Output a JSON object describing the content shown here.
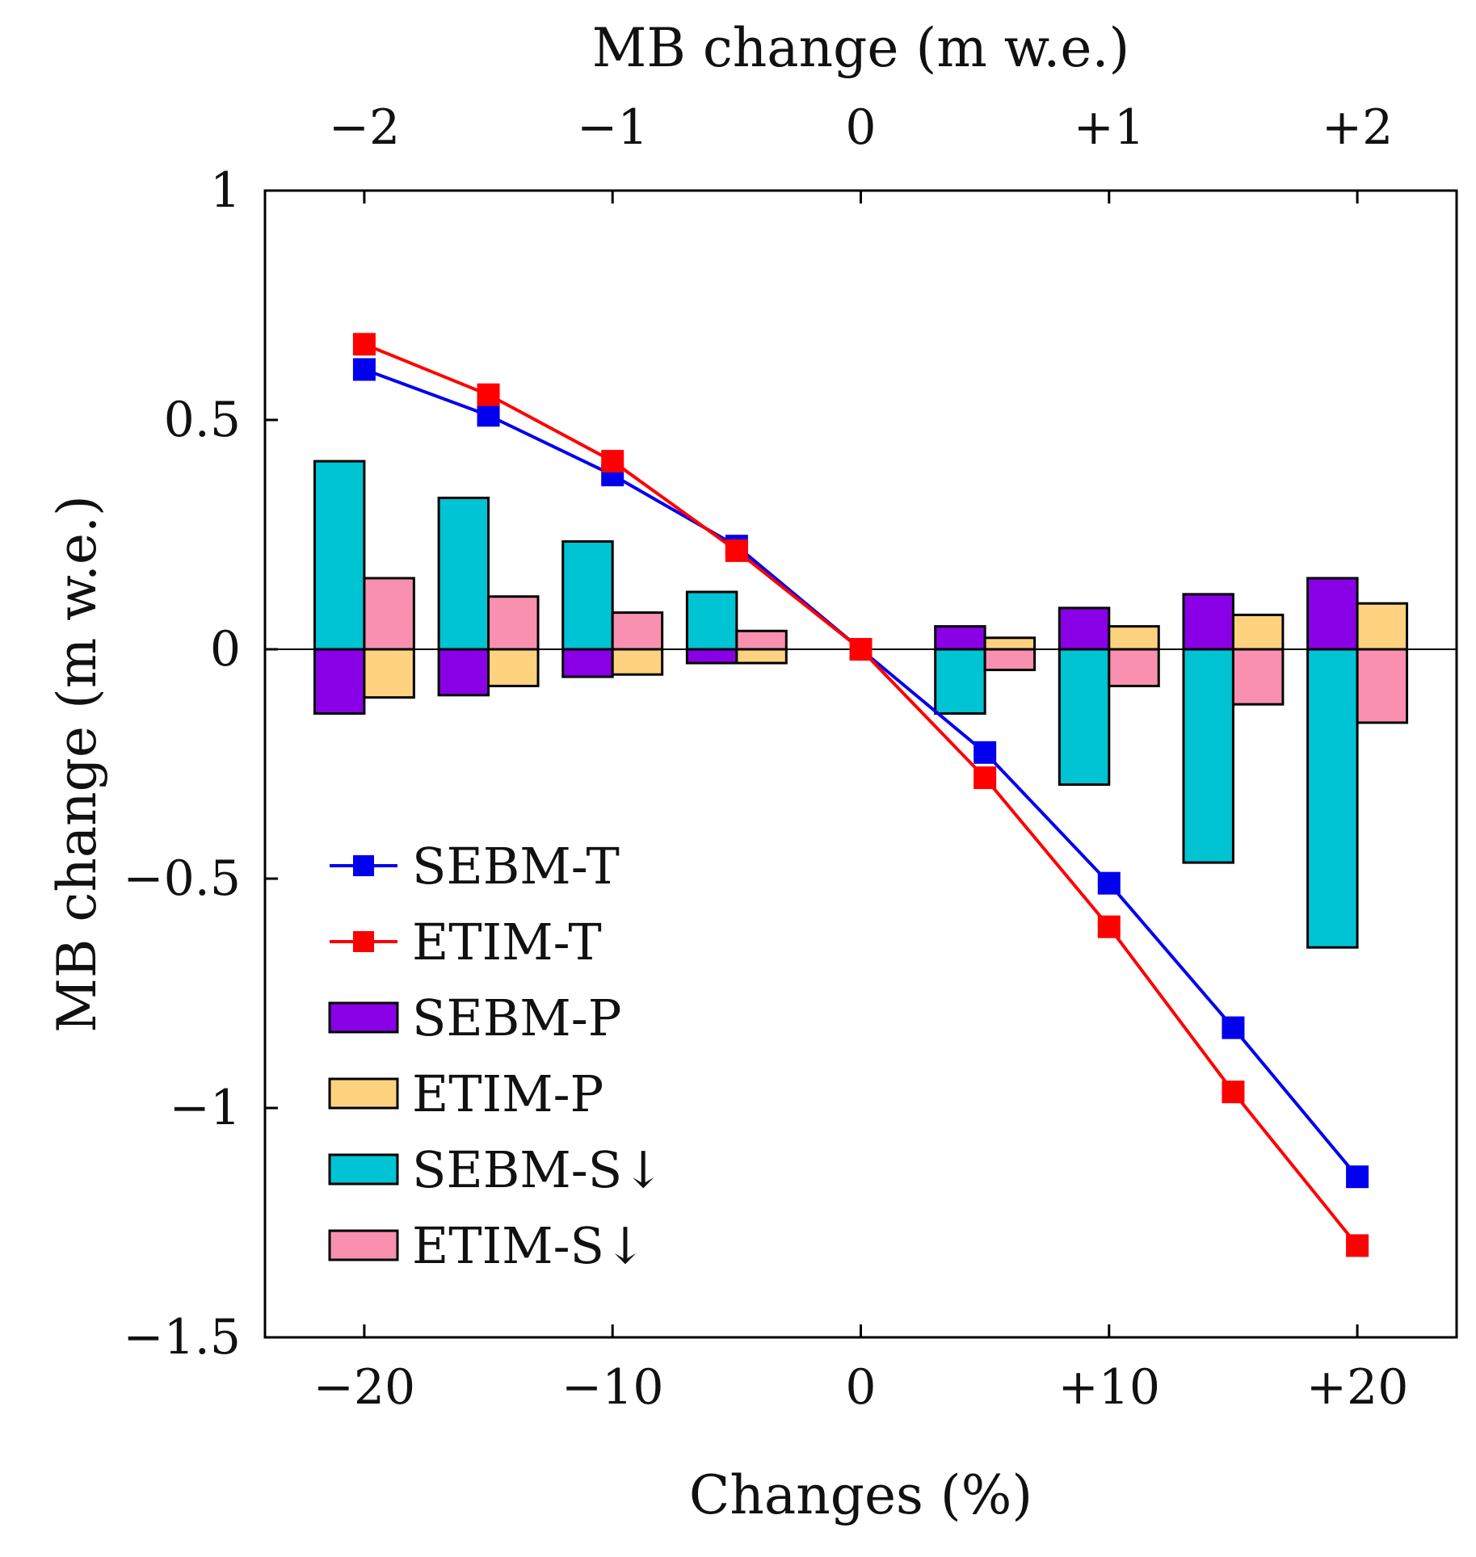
{
  "chart_data": {
    "type": "bar",
    "title": "",
    "xlabel": "Changes (%)",
    "ylabel": "MB change (m w.e.)",
    "x2label": "MB change (m w.e.)",
    "x_ticks": [
      "−20",
      "−10",
      "0",
      "+10",
      "+20"
    ],
    "x_tick_values": [
      -20,
      -10,
      0,
      10,
      20
    ],
    "x2_ticks": [
      "−2",
      "−1",
      "0",
      "+1",
      "+2"
    ],
    "x2_tick_values": [
      -20,
      -10,
      0,
      10,
      20
    ],
    "y_ticks": [
      "1",
      "0.5",
      "0",
      "−0.5",
      "−1",
      "−1.5"
    ],
    "y_tick_values": [
      1,
      0.5,
      0,
      -0.5,
      -1,
      -1.5
    ],
    "xlim": [
      -24,
      24
    ],
    "ylim": [
      -1.5,
      1
    ],
    "categories": [
      -20,
      -15,
      -10,
      -5,
      5,
      10,
      15,
      20
    ],
    "bar_series": [
      {
        "name": "SEBM-P",
        "color": "#8a00e6",
        "group": "left",
        "values": [
          -0.14,
          -0.1,
          -0.06,
          -0.03,
          0.05,
          0.09,
          0.12,
          0.155
        ]
      },
      {
        "name": "ETIM-P",
        "color": "#ffd27f",
        "group": "right",
        "values": [
          -0.105,
          -0.08,
          -0.055,
          -0.03,
          0.025,
          0.05,
          0.075,
          0.1
        ]
      },
      {
        "name": "SEBM-S↓",
        "color": "#00c3d3",
        "group": "left",
        "values": [
          0.41,
          0.33,
          0.235,
          0.125,
          -0.14,
          -0.295,
          -0.465,
          -0.65
        ]
      },
      {
        "name": "ETIM-S↓",
        "color": "#f990b0",
        "group": "right",
        "values": [
          0.155,
          0.115,
          0.08,
          0.04,
          -0.045,
          -0.08,
          -0.12,
          -0.16
        ]
      }
    ],
    "line_series": [
      {
        "name": "SEBM-T",
        "color": "#0000ee",
        "x": [
          -20,
          -15,
          -10,
          -5,
          0,
          5,
          10,
          15,
          20
        ],
        "values": [
          0.61,
          0.51,
          0.38,
          0.225,
          0.0,
          -0.225,
          -0.51,
          -0.825,
          -1.15
        ]
      },
      {
        "name": "ETIM-T",
        "color": "#ff0000",
        "x": [
          -20,
          -15,
          -10,
          -5,
          0,
          5,
          10,
          15,
          20
        ],
        "values": [
          0.665,
          0.555,
          0.41,
          0.215,
          0.0,
          -0.28,
          -0.605,
          -0.965,
          -1.3
        ]
      }
    ],
    "legend": {
      "position": "bottom-left",
      "entries": [
        {
          "label": "SEBM-T",
          "kind": "line",
          "color": "#0000ee"
        },
        {
          "label": "ETIM-T",
          "kind": "line",
          "color": "#ff0000"
        },
        {
          "label": "SEBM-P",
          "kind": "bar",
          "color": "#8a00e6"
        },
        {
          "label": "ETIM-P",
          "kind": "bar",
          "color": "#ffd27f"
        },
        {
          "label": "SEBM-S↓",
          "kind": "bar",
          "color": "#00c3d3"
        },
        {
          "label": "ETIM-S↓",
          "kind": "bar",
          "color": "#f990b0"
        }
      ]
    },
    "grid": false,
    "zero_line": true
  }
}
